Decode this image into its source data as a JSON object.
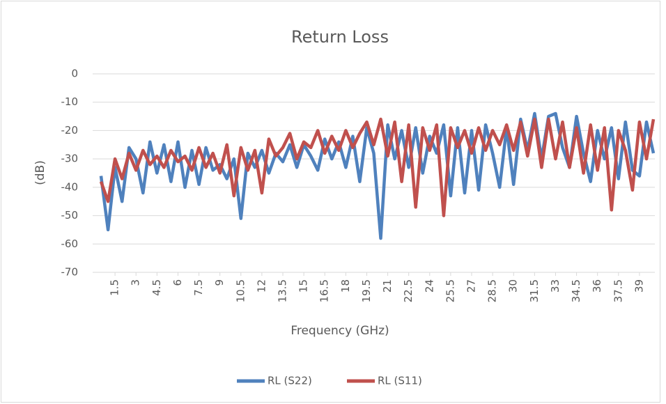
{
  "chart_data": {
    "type": "line",
    "title": "Return Loss",
    "x_label": "Frequency (GHz)",
    "y_label": "(dB)",
    "x": [
      0.5,
      1,
      1.5,
      2,
      2.5,
      3,
      3.5,
      4,
      4.5,
      5,
      5.5,
      6,
      6.5,
      7,
      7.5,
      8,
      8.5,
      9,
      9.5,
      10,
      10.5,
      11,
      11.5,
      12,
      12.5,
      13,
      13.5,
      14,
      14.5,
      15,
      15.5,
      16,
      16.5,
      17,
      17.5,
      18,
      18.5,
      19,
      19.5,
      20,
      20.5,
      21,
      21.5,
      22,
      22.5,
      23,
      23.5,
      24,
      24.5,
      25,
      25.5,
      26,
      26.5,
      27,
      27.5,
      28,
      28.5,
      29,
      29.5,
      30,
      30.5,
      31,
      31.5,
      32,
      32.5,
      33,
      33.5,
      34,
      34.5,
      35,
      35.5,
      36,
      36.5,
      37,
      37.5,
      38,
      38.5,
      39,
      39.5,
      40
    ],
    "series": [
      {
        "name": "RL (S22)",
        "color": "#4f81bd",
        "values": [
          -36,
          -55,
          -33,
          -45,
          -26,
          -30,
          -42,
          -24,
          -35,
          -25,
          -38,
          -24,
          -40,
          -27,
          -39,
          -26,
          -34,
          -32,
          -37,
          -30,
          -51,
          -28,
          -33,
          -27,
          -35,
          -28,
          -31,
          -25,
          -33,
          -25,
          -29,
          -34,
          -23,
          -30,
          -24,
          -33,
          -22,
          -38,
          -19,
          -28,
          -58,
          -18,
          -30,
          -20,
          -33,
          -19,
          -35,
          -22,
          -28,
          -18,
          -43,
          -19,
          -42,
          -20,
          -41,
          -18,
          -28,
          -40,
          -19,
          -39,
          -16,
          -27,
          -14,
          -30,
          -15,
          -14,
          -26,
          -33,
          -15,
          -28,
          -38,
          -20,
          -30,
          -19,
          -37,
          -17,
          -34,
          -36,
          -17,
          -28
        ]
      },
      {
        "name": "RL (S11)",
        "color": "#c0504d",
        "values": [
          -38,
          -45,
          -30,
          -37,
          -28,
          -34,
          -27,
          -32,
          -29,
          -33,
          -27,
          -31,
          -29,
          -34,
          -26,
          -33,
          -28,
          -35,
          -25,
          -43,
          -26,
          -34,
          -27,
          -42,
          -23,
          -29,
          -26,
          -21,
          -30,
          -24,
          -26,
          -20,
          -28,
          -22,
          -27,
          -20,
          -26,
          -21,
          -17,
          -25,
          -16,
          -29,
          -17,
          -38,
          -18,
          -47,
          -19,
          -27,
          -18,
          -50,
          -19,
          -26,
          -20,
          -28,
          -19,
          -27,
          -20,
          -25,
          -18,
          -27,
          -17,
          -29,
          -16,
          -33,
          -16,
          -30,
          -17,
          -33,
          -19,
          -35,
          -18,
          -34,
          -19,
          -48,
          -20,
          -27,
          -41,
          -17,
          -30,
          -16
        ]
      }
    ],
    "xlim": [
      -0.1,
      40.1
    ],
    "xticks": [
      1.5,
      3,
      4.5,
      6,
      7.5,
      9,
      10.5,
      12,
      13.5,
      15,
      16.5,
      18,
      19.5,
      21,
      22.5,
      24,
      25.5,
      27,
      28.5,
      30,
      31.5,
      33,
      34.5,
      36,
      37.5,
      39
    ],
    "ylim": [
      -70,
      0
    ],
    "yticks": [
      0,
      -10,
      -20,
      -30,
      -40,
      -50,
      -60,
      -70
    ],
    "grid": true,
    "legend": "bottom"
  }
}
